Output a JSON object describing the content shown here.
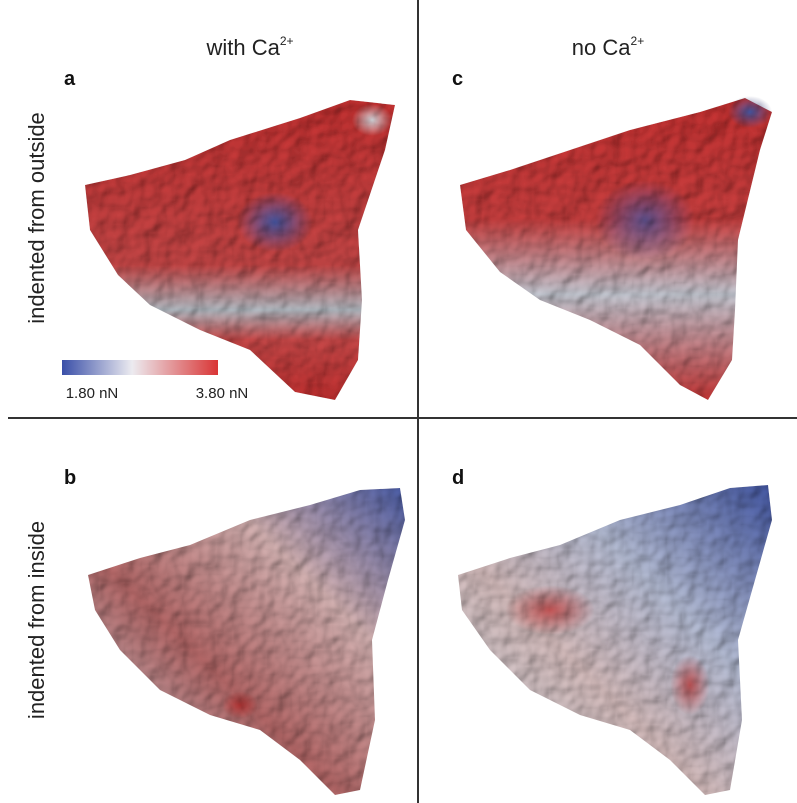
{
  "headers": [
    {
      "text": "with Ca",
      "sup": "2+"
    },
    {
      "text": "no Ca",
      "sup": "2+"
    }
  ],
  "rows": [
    "indented from outside",
    "indented from inside"
  ],
  "panels": [
    "a",
    "b",
    "c",
    "d"
  ],
  "colorbar": {
    "min_label": "1.80 nN",
    "max_label": "3.80 nN"
  }
}
